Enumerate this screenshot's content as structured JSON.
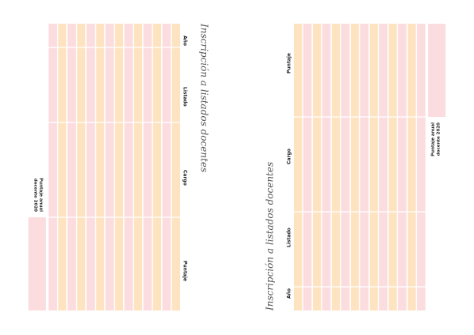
{
  "pages": [
    {
      "title": "Inscripción a listados docentes",
      "headers": [
        "Año",
        "Listado",
        "Cargo",
        "Puntaje"
      ],
      "summary_label": [
        "Puntaje anual",
        "docente 2020"
      ]
    },
    {
      "title": "Inscripción a listados docentes",
      "headers": [
        "Año",
        "Listado",
        "Cargo",
        "Puntaje"
      ],
      "summary_label": [
        "Puntaje anual",
        "docente 2020"
      ]
    }
  ]
}
